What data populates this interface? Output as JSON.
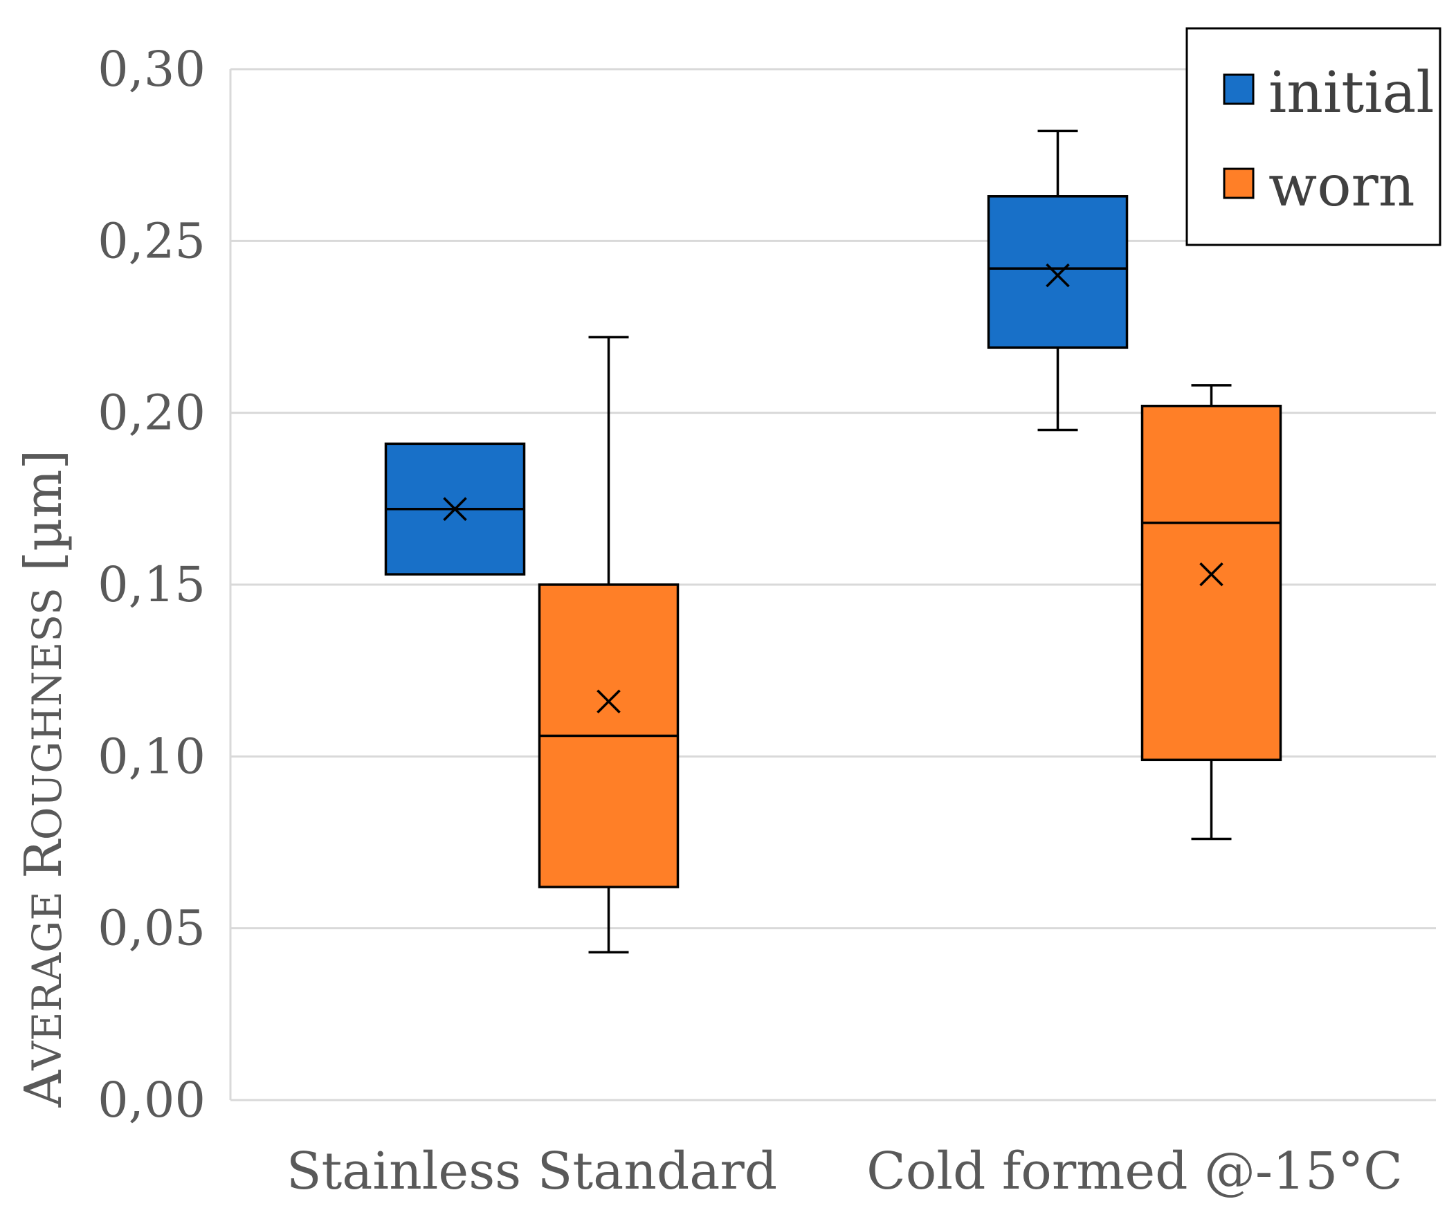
{
  "chart_data": {
    "type": "boxplot",
    "ylabel_parts": [
      {
        "text": "A",
        "style": "cap"
      },
      {
        "text": "VERAGE ",
        "style": "smallcap"
      },
      {
        "text": "R",
        "style": "cap"
      },
      {
        "text": "OUGHNESS",
        "style": "smallcap"
      },
      {
        "text": " [µm]",
        "style": "normal"
      }
    ],
    "ylim": [
      0,
      0.3
    ],
    "y_ticks": [
      {
        "value": 0.0,
        "label": "0,00"
      },
      {
        "value": 0.05,
        "label": "0,05"
      },
      {
        "value": 0.1,
        "label": "0,10"
      },
      {
        "value": 0.15,
        "label": "0,15"
      },
      {
        "value": 0.2,
        "label": "0,20"
      },
      {
        "value": 0.25,
        "label": "0,25"
      },
      {
        "value": 0.3,
        "label": "0,30"
      }
    ],
    "grid": true,
    "categories": [
      "Stainless Standard",
      "Cold formed @-15°C"
    ],
    "legend_position": "top-right",
    "series": [
      {
        "name": "initial",
        "color": "#1870C8",
        "boxes": [
          {
            "min": 0.153,
            "q1": 0.153,
            "median": 0.172,
            "q3": 0.191,
            "max": 0.191,
            "mean": 0.172
          },
          {
            "min": 0.195,
            "q1": 0.219,
            "median": 0.242,
            "q3": 0.263,
            "max": 0.282,
            "mean": 0.24
          }
        ]
      },
      {
        "name": "worn",
        "color": "#FF7F27",
        "boxes": [
          {
            "min": 0.043,
            "q1": 0.062,
            "median": 0.106,
            "q3": 0.15,
            "max": 0.222,
            "mean": 0.116
          },
          {
            "min": 0.076,
            "q1": 0.099,
            "median": 0.168,
            "q3": 0.202,
            "max": 0.208,
            "mean": 0.153
          }
        ]
      }
    ]
  }
}
